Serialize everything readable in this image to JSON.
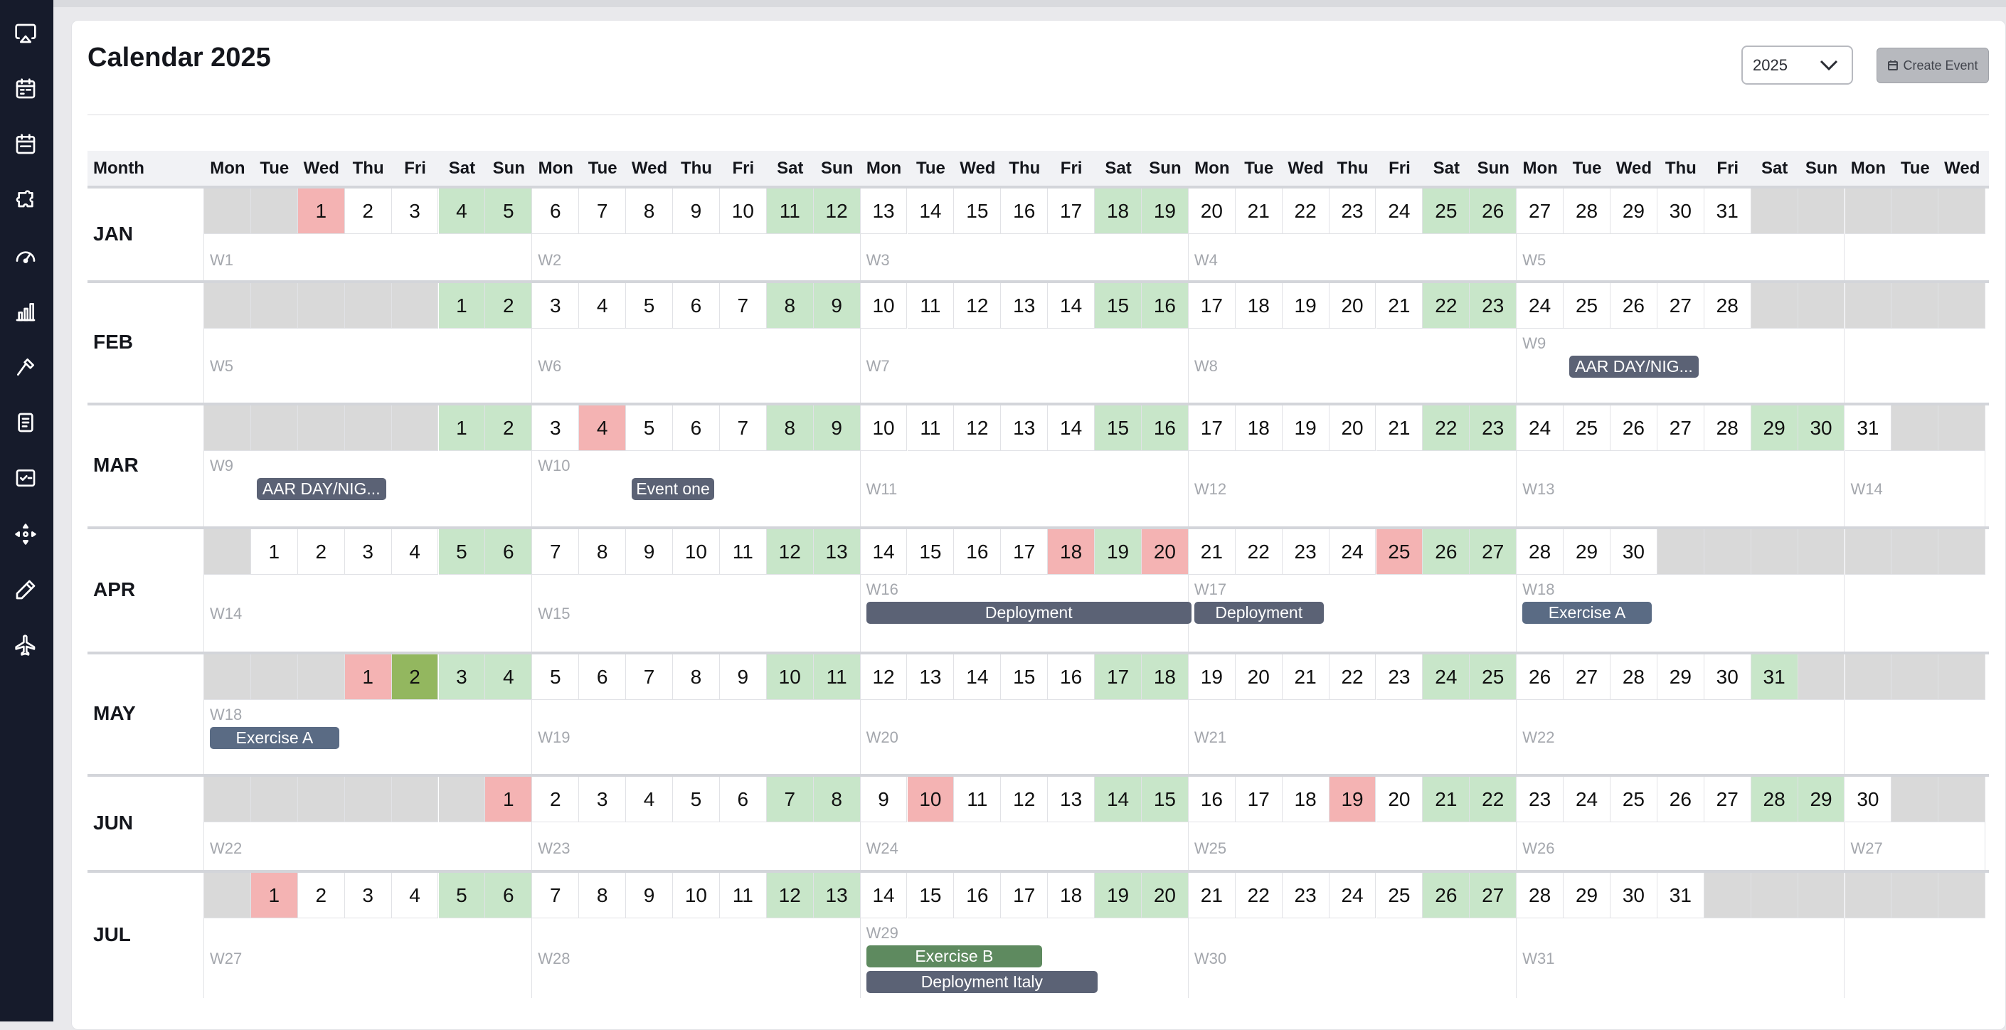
{
  "sidebar": {
    "icons": [
      "airplay-icon",
      "calendar-icon",
      "calendar-check-icon",
      "puzzle-icon",
      "gauge-icon",
      "bar-chart-icon",
      "hammer-icon",
      "clipboard-icon",
      "checklist-icon",
      "move-icon",
      "pencil-icon",
      "plane-icon"
    ]
  },
  "page": {
    "title": "Calendar 2025"
  },
  "year_select": {
    "value": "2025"
  },
  "create_button": {
    "label": "Create Event"
  },
  "header": {
    "month_col": "Month",
    "days": [
      "Mon",
      "Tue",
      "Wed",
      "Thu",
      "Fri",
      "Sat",
      "Sun",
      "Mon",
      "Tue",
      "Wed",
      "Thu",
      "Fri",
      "Sat",
      "Sun",
      "Mon",
      "Tue",
      "Wed",
      "Thu",
      "Fri",
      "Sat",
      "Sun",
      "Mon",
      "Tue",
      "Wed",
      "Thu",
      "Fri",
      "Sat",
      "Sun",
      "Mon",
      "Tue",
      "Wed",
      "Thu",
      "Fri",
      "Sat",
      "Sun",
      "Mon",
      "Tue",
      "Wed"
    ]
  },
  "colors": {
    "weekend": "#c8e6c9",
    "holiday": "#f4b3b3",
    "special": "#93b75f",
    "empty": "#d9d9d9",
    "event_default": "#5b6275",
    "event_exercise_a": "#5a6b84",
    "event_exercise_b": "#5e8a5f"
  },
  "months": [
    {
      "name": "JAN",
      "offset": 2,
      "days": 31,
      "holidays": [
        1
      ],
      "special": [],
      "weeks": [
        "W1",
        "W2",
        "W3",
        "W4",
        "W5"
      ],
      "events": []
    },
    {
      "name": "FEB",
      "offset": 5,
      "days": 28,
      "holidays": [],
      "special": [],
      "weeks": [
        "W5",
        "W6",
        "W7",
        "W8",
        "W9"
      ],
      "events": [
        {
          "label": "AAR DAY/NIG...",
          "week": 4,
          "start": 1,
          "span": 3,
          "color": "#5b6275",
          "lane": 0
        }
      ]
    },
    {
      "name": "MAR",
      "offset": 5,
      "days": 31,
      "holidays": [
        4
      ],
      "special": [],
      "weeks": [
        "W9",
        "W10",
        "W11",
        "W12",
        "W13",
        "W14"
      ],
      "events": [
        {
          "label": "AAR DAY/NIG...",
          "week": 0,
          "start": 1,
          "span": 3,
          "color": "#5b6275",
          "lane": 0
        },
        {
          "label": "Event one",
          "week": 1,
          "start": 2,
          "span": 2,
          "color": "#5b6275",
          "lane": 0
        }
      ]
    },
    {
      "name": "APR",
      "offset": 1,
      "days": 30,
      "holidays": [
        18,
        20,
        25
      ],
      "special": [],
      "weeks": [
        "W14",
        "W15",
        "W16",
        "W17",
        "W18"
      ],
      "events": [
        {
          "label": "Deployment",
          "week": 2,
          "start": 0,
          "span": 7,
          "color": "#5b6275",
          "lane": 0
        },
        {
          "label": "Deployment",
          "week": 3,
          "start": 0,
          "span": 3,
          "color": "#5b6275",
          "lane": 0
        },
        {
          "label": "Exercise A",
          "week": 4,
          "start": 0,
          "span": 3,
          "color": "#5a6b84",
          "lane": 0
        }
      ]
    },
    {
      "name": "MAY",
      "offset": 3,
      "days": 31,
      "holidays": [
        1
      ],
      "special": [
        2
      ],
      "weeks": [
        "W18",
        "W19",
        "W20",
        "W21",
        "W22"
      ],
      "events": [
        {
          "label": "Exercise A",
          "week": 0,
          "start": 0,
          "span": 3,
          "color": "#5a6b84",
          "lane": 0
        }
      ]
    },
    {
      "name": "JUN",
      "offset": 6,
      "days": 30,
      "holidays": [
        1,
        10,
        19
      ],
      "special": [],
      "weeks": [
        "W22",
        "W23",
        "W24",
        "W25",
        "W26",
        "W27"
      ],
      "events": []
    },
    {
      "name": "JUL",
      "offset": 1,
      "days": 31,
      "holidays": [
        1
      ],
      "special": [],
      "weeks": [
        "W27",
        "W28",
        "W29",
        "W30",
        "W31"
      ],
      "events": [
        {
          "label": "Exercise B",
          "week": 2,
          "start": 0,
          "span": 4,
          "color": "#5e8a5f",
          "lane": 0
        },
        {
          "label": "Deployment Italy",
          "week": 2,
          "start": 0,
          "span": 5,
          "color": "#5b6275",
          "lane": 1
        }
      ]
    }
  ]
}
